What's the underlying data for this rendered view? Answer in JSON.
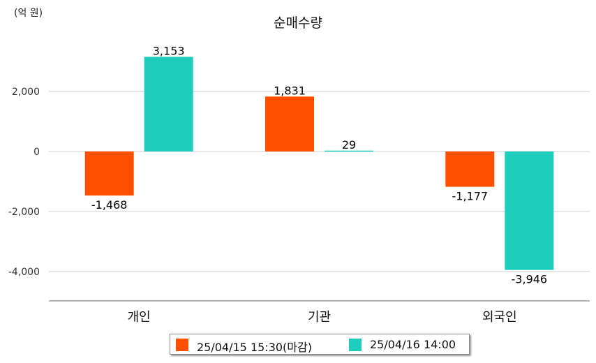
{
  "chart_data": {
    "type": "bar",
    "title": "순매수량",
    "unit_label": "(억 원)",
    "categories": [
      "개인",
      "기관",
      "외국인"
    ],
    "series": [
      {
        "name": "25/04/15 15:30(마감)",
        "color": "#ff5000",
        "values": [
          -1468,
          1831,
          -1177
        ]
      },
      {
        "name": "25/04/16 14:00",
        "color": "#1ecdbc",
        "values": [
          3153,
          29,
          -3946
        ]
      }
    ],
    "value_labels": [
      [
        "-1,468",
        "1,831",
        "-1,177"
      ],
      [
        "3,153",
        "29",
        "-3,946"
      ]
    ],
    "y_ticks": [
      2000,
      0,
      -2000,
      -4000
    ],
    "y_tick_labels": [
      "2,000",
      "0",
      "-2,000",
      "-4,000"
    ],
    "ylim": [
      -5000,
      3450
    ],
    "grid": true,
    "legend_position": "bottom"
  }
}
